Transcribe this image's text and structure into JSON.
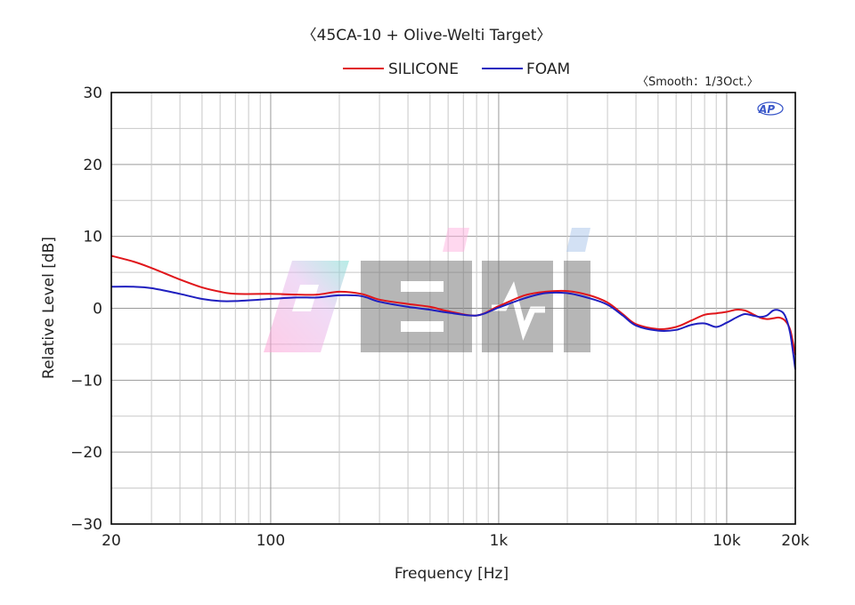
{
  "chart_data": {
    "type": "line",
    "title": "〈45CA-10 + Olive-Welti Target〉",
    "annotation": "〈Smooth：1/3Oct.〉",
    "logo_text": "AP",
    "watermark_text": "EIHI",
    "xlabel": "Frequency [Hz]",
    "ylabel": "Relative Level [dB]",
    "x_scale": "log",
    "xlim": [
      20,
      20000
    ],
    "ylim": [
      -30,
      30
    ],
    "grid": true,
    "legend_position": "top",
    "x_ticks": [
      {
        "value": 20,
        "label": "20"
      },
      {
        "value": 100,
        "label": "100"
      },
      {
        "value": 1000,
        "label": "1k"
      },
      {
        "value": 10000,
        "label": "10k"
      },
      {
        "value": 20000,
        "label": "20k"
      }
    ],
    "y_ticks": [
      {
        "value": 30,
        "label": "30"
      },
      {
        "value": 20,
        "label": "20"
      },
      {
        "value": 10,
        "label": "10"
      },
      {
        "value": 0,
        "label": "0"
      },
      {
        "value": -10,
        "label": "−10"
      },
      {
        "value": -20,
        "label": "−20"
      },
      {
        "value": -30,
        "label": "−30"
      }
    ],
    "series": [
      {
        "name": "SILICONE",
        "color": "#e0161b",
        "points": [
          [
            20,
            7.3
          ],
          [
            25,
            6.5
          ],
          [
            30,
            5.6
          ],
          [
            40,
            4.0
          ],
          [
            50,
            2.9
          ],
          [
            60,
            2.3
          ],
          [
            70,
            2.0
          ],
          [
            100,
            2.0
          ],
          [
            130,
            1.9
          ],
          [
            160,
            1.9
          ],
          [
            200,
            2.3
          ],
          [
            250,
            2.0
          ],
          [
            300,
            1.2
          ],
          [
            400,
            0.6
          ],
          [
            500,
            0.2
          ],
          [
            600,
            -0.4
          ],
          [
            800,
            -1.0
          ],
          [
            1000,
            0.3
          ],
          [
            1300,
            1.8
          ],
          [
            1600,
            2.3
          ],
          [
            2000,
            2.4
          ],
          [
            2500,
            1.8
          ],
          [
            3000,
            0.8
          ],
          [
            3500,
            -0.8
          ],
          [
            4000,
            -2.2
          ],
          [
            5000,
            -2.9
          ],
          [
            6000,
            -2.6
          ],
          [
            7000,
            -1.7
          ],
          [
            8000,
            -0.9
          ],
          [
            9000,
            -0.7
          ],
          [
            10000,
            -0.5
          ],
          [
            11000,
            -0.2
          ],
          [
            12000,
            -0.3
          ],
          [
            13000,
            -0.8
          ],
          [
            14000,
            -1.3
          ],
          [
            15000,
            -1.5
          ],
          [
            16000,
            -1.4
          ],
          [
            17000,
            -1.3
          ],
          [
            18000,
            -1.7
          ],
          [
            19000,
            -3.0
          ],
          [
            20000,
            -6.5
          ]
        ]
      },
      {
        "name": "FOAM",
        "color": "#1f1fbf",
        "points": [
          [
            20,
            3.0
          ],
          [
            25,
            3.0
          ],
          [
            30,
            2.8
          ],
          [
            40,
            2.0
          ],
          [
            50,
            1.3
          ],
          [
            60,
            1.0
          ],
          [
            70,
            1.0
          ],
          [
            100,
            1.3
          ],
          [
            130,
            1.5
          ],
          [
            160,
            1.5
          ],
          [
            200,
            1.8
          ],
          [
            250,
            1.7
          ],
          [
            300,
            0.9
          ],
          [
            400,
            0.2
          ],
          [
            500,
            -0.2
          ],
          [
            600,
            -0.6
          ],
          [
            800,
            -1.0
          ],
          [
            1000,
            0.1
          ],
          [
            1300,
            1.4
          ],
          [
            1600,
            2.1
          ],
          [
            2000,
            2.1
          ],
          [
            2500,
            1.4
          ],
          [
            3000,
            0.5
          ],
          [
            3500,
            -1.0
          ],
          [
            4000,
            -2.4
          ],
          [
            5000,
            -3.1
          ],
          [
            6000,
            -3.0
          ],
          [
            7000,
            -2.3
          ],
          [
            8000,
            -2.1
          ],
          [
            9000,
            -2.6
          ],
          [
            10000,
            -2.0
          ],
          [
            11000,
            -1.3
          ],
          [
            12000,
            -0.8
          ],
          [
            13000,
            -1.0
          ],
          [
            14000,
            -1.2
          ],
          [
            15000,
            -1.0
          ],
          [
            16000,
            -0.3
          ],
          [
            17000,
            -0.3
          ],
          [
            18000,
            -1.0
          ],
          [
            19000,
            -3.5
          ],
          [
            20000,
            -8.5
          ]
        ]
      }
    ]
  }
}
